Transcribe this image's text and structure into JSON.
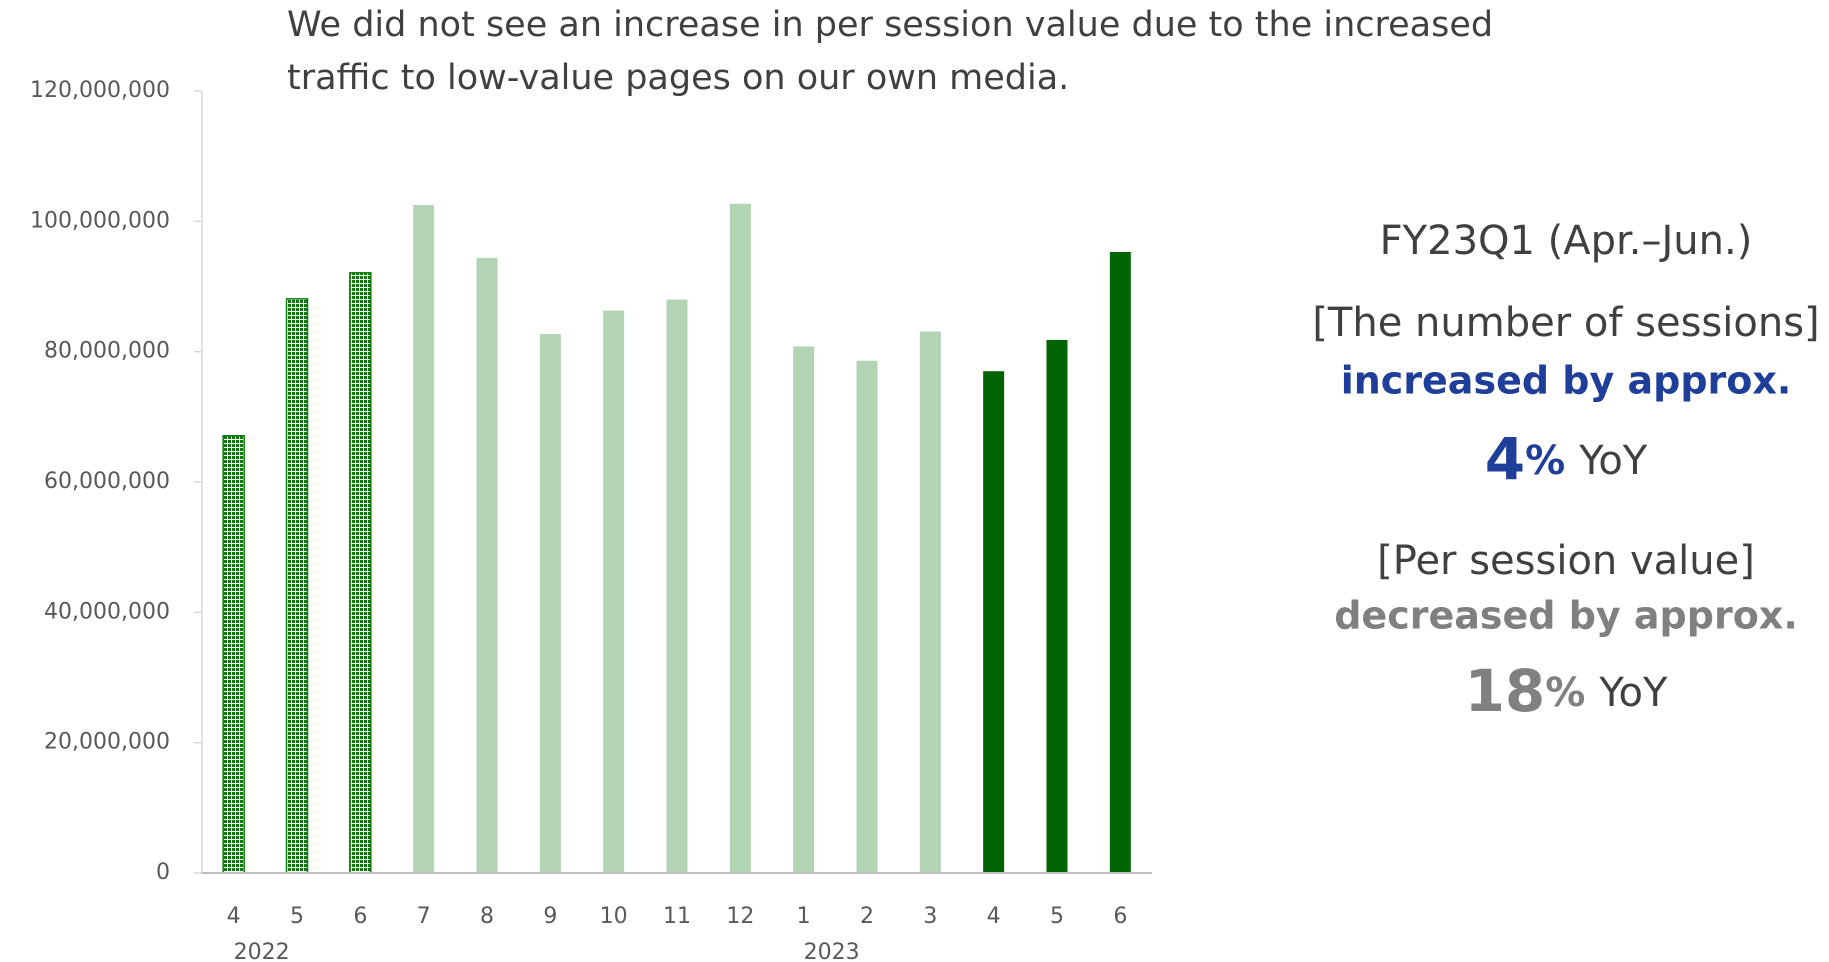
{
  "chart_data": {
    "type": "bar",
    "title": [
      "We did not see an increase in per session value due to the increased",
      "traffic to low-value pages on our own media."
    ],
    "categories": [
      "4",
      "5",
      "6",
      "7",
      "8",
      "9",
      "10",
      "11",
      "12",
      "1",
      "2",
      "3",
      "4",
      "5",
      "6"
    ],
    "category_years": [
      "2022",
      null,
      null,
      null,
      null,
      null,
      null,
      null,
      null,
      "2023",
      null,
      null,
      null,
      null,
      null
    ],
    "values": [
      67100000,
      88100000,
      92100000,
      102500000,
      94400000,
      82700000,
      86300000,
      88000000,
      102700000,
      80800000,
      78600000,
      83100000,
      77000000,
      81800000,
      95300000
    ],
    "colors": [
      "#0b7a0b",
      "#0b7a0b",
      "#0b7a0b",
      "#b3d3b5",
      "#b3d3b5",
      "#b3d3b5",
      "#b3d3b5",
      "#b3d3b5",
      "#b3d3b5",
      "#b3d3b5",
      "#b3d3b5",
      "#b3d3b5",
      "#006400",
      "#006400",
      "#006400"
    ],
    "patterns": [
      "dots",
      "dots",
      "dots",
      null,
      null,
      null,
      null,
      null,
      null,
      null,
      null,
      null,
      null,
      null,
      null
    ],
    "ylim": [
      0,
      120000000
    ],
    "yticks": [
      0,
      {
        "value": 20000000,
        "label": "20,000,000"
      },
      {
        "value": 40000000,
        "label": "40,000,000"
      },
      {
        "value": 60000000,
        "label": "60,000,000"
      },
      {
        "value": 80000000,
        "label": "80,000,000"
      },
      {
        "value": 100000000,
        "label": "100,000,000"
      },
      {
        "value": 120000000,
        "label": "120,000,000"
      }
    ],
    "grid": false,
    "annotation": {
      "heading": "FY23Q1 (Apr.–Jun.)",
      "sessions_label": "[The number of sessions]",
      "sessions_text": "increased by approx.",
      "sessions_number": "4",
      "sessions_unit": "%",
      "sessions_suffix": "YoY",
      "value_label": "[Per session value]",
      "value_text": "decreased by approx.",
      "value_number": "18",
      "value_unit": "%",
      "value_suffix": "YoY"
    }
  }
}
